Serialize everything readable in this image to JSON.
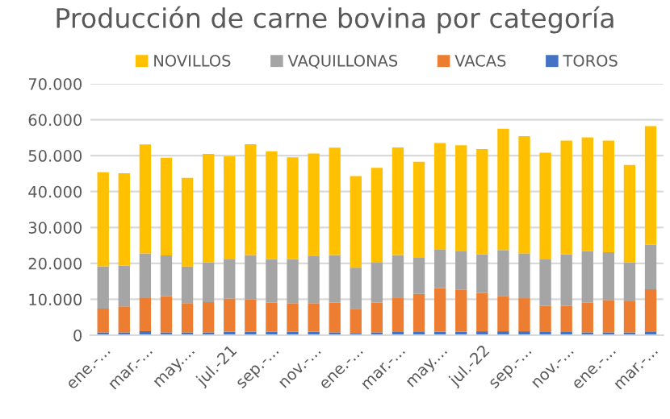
{
  "chart_data": {
    "type": "bar",
    "stacked": true,
    "title": "Producción de carne bovina por categoría",
    "categories": [
      "ene.-...",
      null,
      "mar.-...",
      null,
      "may....",
      null,
      "jul.-21",
      null,
      "sep.-...",
      null,
      "nov.-...",
      null,
      "ene.-...",
      null,
      "mar.-...",
      null,
      "may....",
      null,
      "jul.-22",
      null,
      "sep.-...",
      null,
      "nov.-...",
      null,
      "ene.-...",
      null,
      "mar.-..."
    ],
    "series": [
      {
        "name": "TOROS",
        "color": "#4472c4",
        "values": [
          800,
          800,
          1100,
          800,
          800,
          800,
          1000,
          1000,
          1000,
          1000,
          1000,
          800,
          600,
          800,
          900,
          900,
          1000,
          1000,
          1100,
          1100,
          1100,
          900,
          900,
          800,
          800,
          800,
          900
        ]
      },
      {
        "name": "VACAS",
        "color": "#ed7d31",
        "values": [
          6600,
          7200,
          9200,
          10100,
          8100,
          8400,
          9200,
          9000,
          8100,
          7900,
          7900,
          8300,
          6600,
          8300,
          9600,
          10600,
          12100,
          11600,
          10700,
          9700,
          9200,
          7300,
          7300,
          8300,
          9000,
          8600,
          11900
        ]
      },
      {
        "name": "VAQUILLONAS",
        "color": "#a5a5a5",
        "values": [
          11800,
          11400,
          12500,
          11300,
          10200,
          11100,
          10900,
          12300,
          12100,
          12300,
          13100,
          13200,
          11600,
          11100,
          11800,
          10200,
          10700,
          10900,
          10700,
          12900,
          12500,
          12900,
          14300,
          14300,
          13300,
          10900,
          12400
        ]
      },
      {
        "name": "NOVILLOS",
        "color": "#ffc000",
        "values": [
          26200,
          25700,
          30300,
          27200,
          24700,
          30200,
          28700,
          30900,
          30000,
          28300,
          28600,
          29900,
          25500,
          26400,
          30000,
          26600,
          29700,
          29400,
          29300,
          33800,
          32600,
          29700,
          31700,
          31700,
          31100,
          27100,
          33000
        ]
      }
    ],
    "ylim": [
      0,
      70000
    ],
    "yticks": [
      0,
      {
        "value": 10000,
        "label": "10.000"
      },
      {
        "value": 20000,
        "label": "20.000"
      },
      {
        "value": 30000,
        "label": "30.000"
      },
      {
        "value": 40000,
        "label": "40.000"
      },
      {
        "value": 50000,
        "label": "50.000"
      },
      {
        "value": 60000,
        "label": "60.000"
      },
      {
        "value": 70000,
        "label": "70.000"
      }
    ],
    "grid": "y",
    "legend": "top"
  }
}
